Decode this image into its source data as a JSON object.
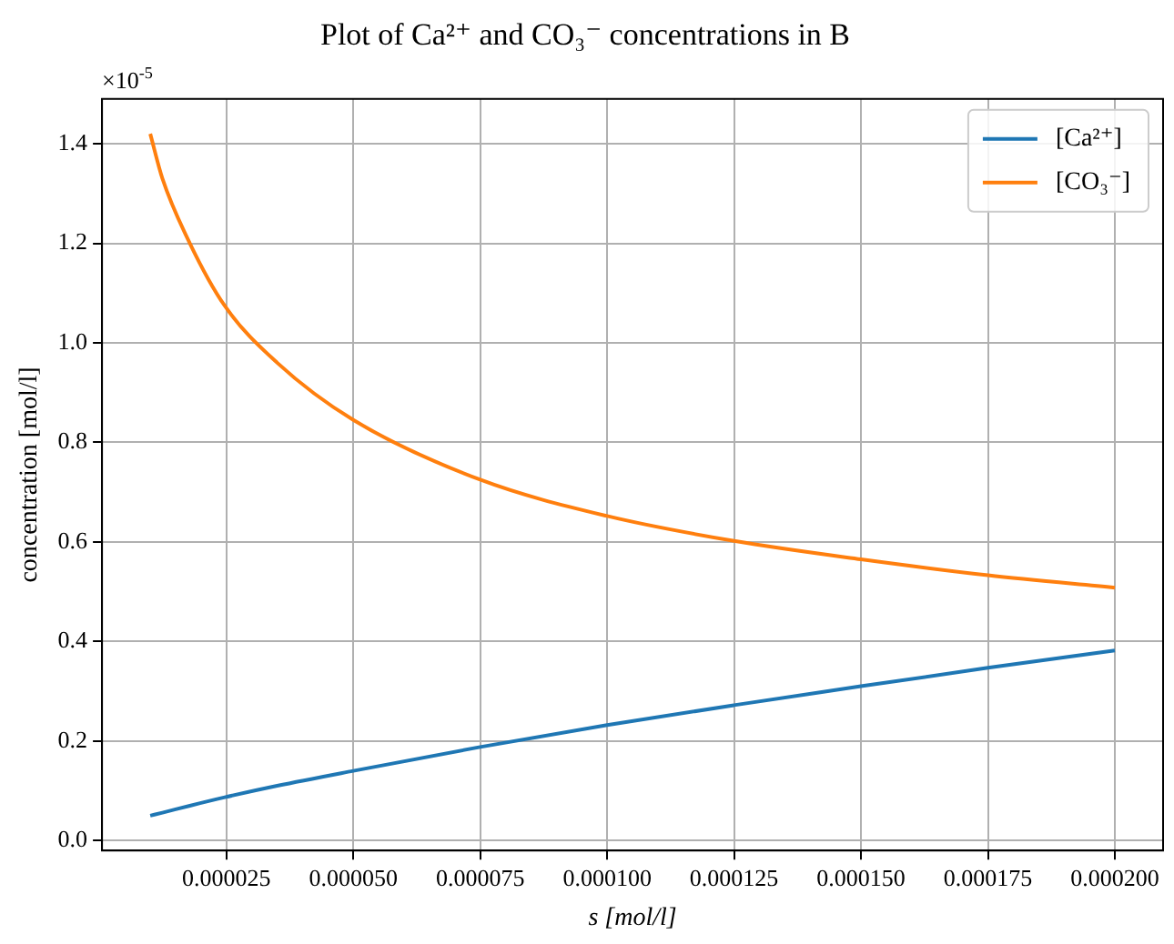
{
  "chart_data": {
    "type": "line",
    "title": "Plot of Ca²⁺ and CO₃⁻ concentrations in B",
    "xlabel": "s [mol/l]",
    "ylabel": "concentration [mol/l]",
    "annotations": [
      "×10$^{-5}$"
    ],
    "x": [
      1e-05,
      1.24e-05,
      1.78e-05,
      2.47e-05,
      3.5e-05,
      5e-05,
      7.5e-05,
      0.0001,
      0.000125,
      0.00015,
      0.000175,
      0.0002
    ],
    "series": [
      {
        "name": "[Ca²⁺]",
        "color": "#1f77b4",
        "values": [
          0.05,
          0.056,
          0.07,
          0.087,
          0.11,
          0.14,
          0.188,
          0.232,
          0.272,
          0.31,
          0.347,
          0.382
        ]
      },
      {
        "name": "[CO₃⁻]",
        "color": "#ff7f0e",
        "values": [
          1.42,
          1.33,
          1.2,
          1.074,
          0.96,
          0.845,
          0.725,
          0.652,
          0.602,
          0.565,
          0.533,
          0.508
        ]
      }
    ],
    "xlim": [
      5e-07,
      0.0002095
    ],
    "ylim": [
      -0.02,
      1.49
    ],
    "xticks": [
      {
        "value": 2.5e-05,
        "label": "0.000025"
      },
      {
        "value": 5e-05,
        "label": "0.000050"
      },
      {
        "value": 7.5e-05,
        "label": "0.000075"
      },
      {
        "value": 0.0001,
        "label": "0.000100"
      },
      {
        "value": 0.000125,
        "label": "0.000125"
      },
      {
        "value": 0.00015,
        "label": "0.000150"
      },
      {
        "value": 0.000175,
        "label": "0.000175"
      },
      {
        "value": 0.0002,
        "label": "0.000200"
      }
    ],
    "yticks": [
      {
        "value": 0,
        "label": "0.0"
      },
      {
        "value": 0.2,
        "label": "0.2"
      },
      {
        "value": 0.4,
        "label": "0.4"
      },
      {
        "value": 0.6,
        "label": "0.6"
      },
      {
        "value": 0.8,
        "label": "0.8"
      },
      {
        "value": 1.0,
        "label": "1.0"
      },
      {
        "value": 1.2,
        "label": "1.2"
      },
      {
        "value": 1.4,
        "label": "1.4"
      }
    ],
    "grid": true,
    "legend": "top right",
    "marker": "none",
    "line_style": "solid"
  }
}
